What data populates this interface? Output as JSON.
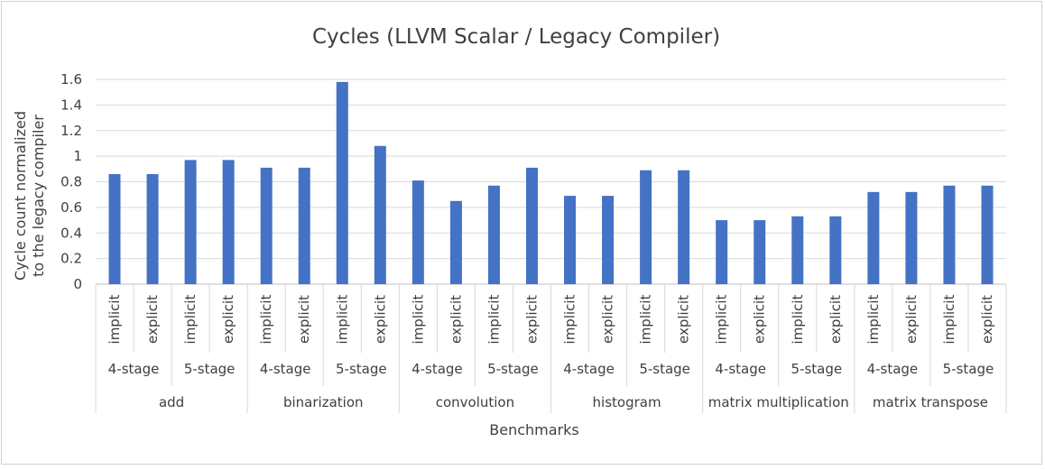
{
  "chart_data": {
    "type": "bar",
    "title": "Cycles (LLVM Scalar / Legacy Compiler)",
    "xlabel": "Benchmarks",
    "ylabel": [
      "Cycle count normalized",
      "to the legacy compiler"
    ],
    "ylim": [
      0,
      1.6
    ],
    "yticks": [
      "0",
      "0.2",
      "0.4",
      "0.6",
      "0.8",
      "1",
      "1.2",
      "1.4",
      "1.6"
    ],
    "grid": true,
    "legend": "none",
    "bar_color": "#4472C4",
    "level1_labels": [
      "implicit",
      "explicit"
    ],
    "level2_labels": [
      "4-stage",
      "5-stage"
    ],
    "groups": [
      "add",
      "binarization",
      "convolution",
      "histogram",
      "matrix multiplication",
      "matrix transpose"
    ],
    "values": [
      0.86,
      0.86,
      0.97,
      0.97,
      0.91,
      0.91,
      1.58,
      1.08,
      0.81,
      0.65,
      0.77,
      0.91,
      0.69,
      0.69,
      0.89,
      0.89,
      0.5,
      0.5,
      0.53,
      0.53,
      0.72,
      0.72,
      0.77,
      0.77
    ]
  }
}
